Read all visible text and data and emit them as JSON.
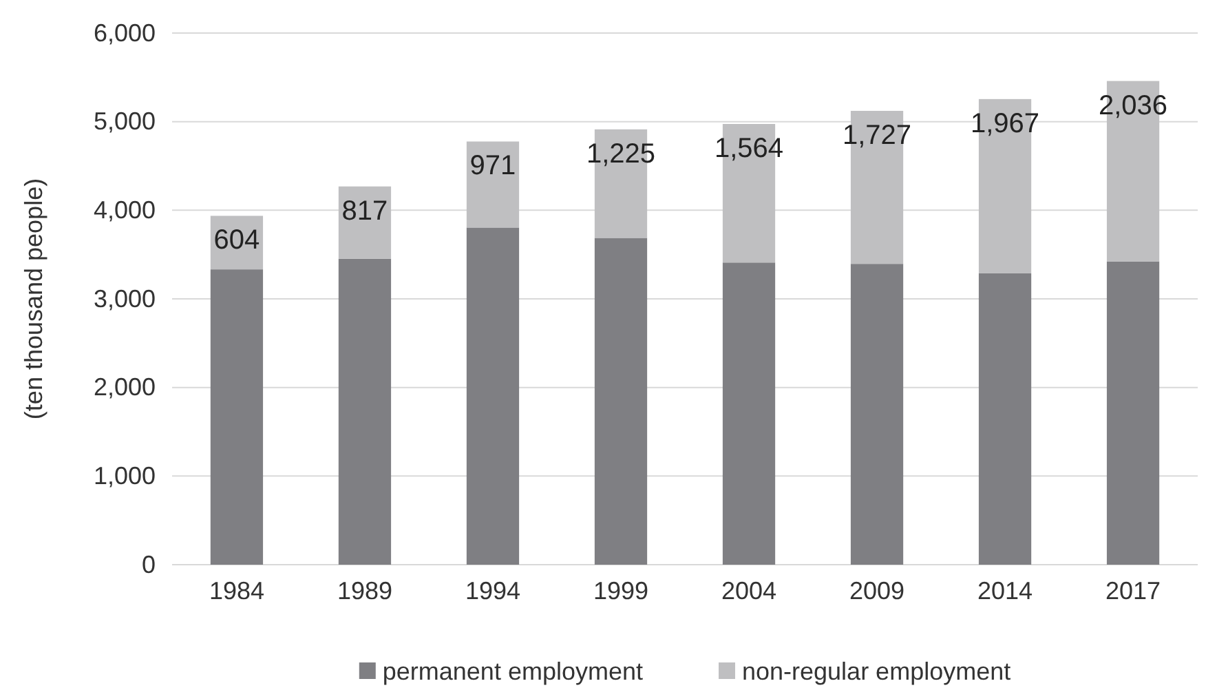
{
  "chart_data": {
    "type": "bar",
    "stacked": true,
    "ylabel": "(ten thousand people)",
    "categories": [
      "1984",
      "1989",
      "1994",
      "1999",
      "2004",
      "2009",
      "2014",
      "2017"
    ],
    "series": [
      {
        "name": "permanent employment",
        "color": "#7f7f83",
        "values": [
          3333,
          3452,
          3805,
          3688,
          3410,
          3395,
          3288,
          3423
        ]
      },
      {
        "name": "non-regular employment",
        "color": "#bfbfc1",
        "values": [
          604,
          817,
          971,
          1225,
          1564,
          1727,
          1967,
          2036
        ],
        "value_labels": [
          "604",
          "817",
          "971",
          "1,225",
          "1,564",
          "1,727",
          "1,967",
          "2,036"
        ]
      }
    ],
    "ylim": [
      0,
      6000
    ],
    "yticks": [
      {
        "value": 0,
        "label": "0"
      },
      {
        "value": 1000,
        "label": "1,000"
      },
      {
        "value": 2000,
        "label": "2,000"
      },
      {
        "value": 3000,
        "label": "3,000"
      },
      {
        "value": 4000,
        "label": "4,000"
      },
      {
        "value": 5000,
        "label": "5,000"
      },
      {
        "value": 6000,
        "label": "6,000"
      }
    ],
    "grid": "y",
    "legend": "bottom"
  }
}
